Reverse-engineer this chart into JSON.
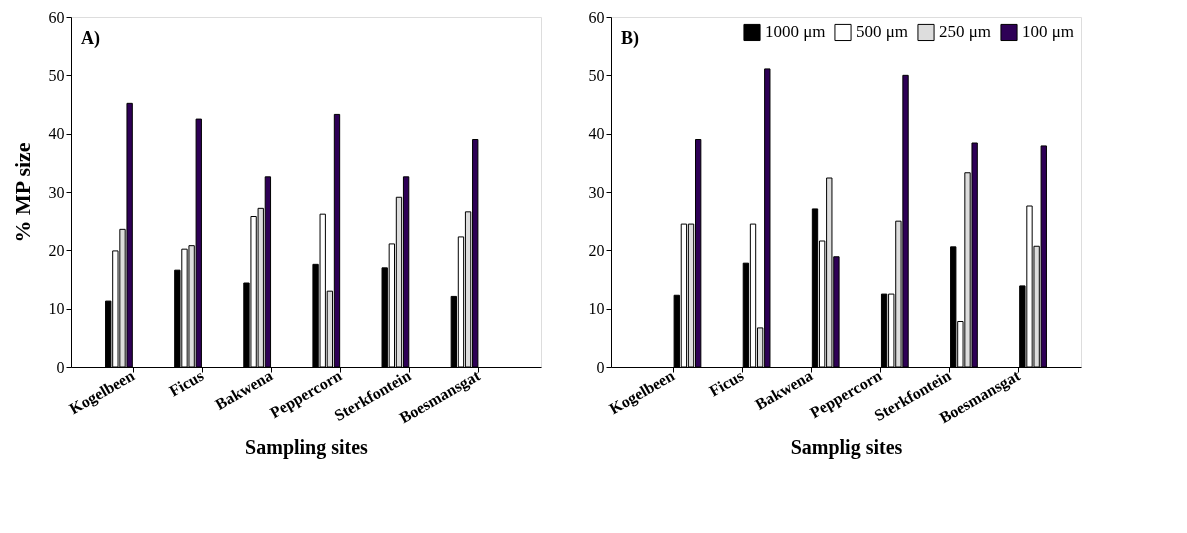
{
  "chart_data": [
    {
      "type": "bar",
      "categories": [
        "Kogelbeen",
        "Ficus",
        "Bakwena",
        "Peppercorn",
        "Sterkfontein",
        "Boesmansgat"
      ],
      "xlabel": "Sampling sites",
      "ylabel": "% MP size",
      "annotations": [
        "A)"
      ],
      "ylim": [
        0,
        60
      ],
      "yticks": [
        0,
        10,
        20,
        30,
        40,
        50,
        60
      ],
      "grid": false,
      "legend": false,
      "series": [
        {
          "color": "#000000",
          "values": [
            11.3,
            16.6,
            14.4,
            17.6,
            17.0,
            12.1
          ]
        },
        {
          "color": "#ffffff",
          "values": [
            19.9,
            20.2,
            25.8,
            26.2,
            21.1,
            22.3
          ]
        },
        {
          "color": "#dddddd",
          "values": [
            23.6,
            20.8,
            27.2,
            13.0,
            29.1,
            26.6
          ]
        },
        {
          "color": "#2e0056",
          "values": [
            45.2,
            42.5,
            32.6,
            43.3,
            32.6,
            39.0
          ]
        }
      ]
    },
    {
      "type": "bar",
      "categories": [
        "Kogelbeen",
        "Ficus",
        "Bakwena",
        "Peppercorn",
        "Sterkfontein",
        "Boesmansgat"
      ],
      "xlabel": "Samplig sites",
      "annotations": [
        "B)"
      ],
      "ylim": [
        0,
        60
      ],
      "yticks": [
        0,
        10,
        20,
        30,
        40,
        50,
        60
      ],
      "grid": false,
      "legend": "top right",
      "series": [
        {
          "name": "1000 μm",
          "color": "#000000",
          "values": [
            12.3,
            17.8,
            27.1,
            12.5,
            20.6,
            13.9
          ]
        },
        {
          "name": "500 μm",
          "color": "#ffffff",
          "values": [
            24.5,
            24.5,
            21.6,
            12.5,
            7.8,
            27.6
          ]
        },
        {
          "name": "250 μm",
          "color": "#dddddd",
          "values": [
            24.5,
            6.7,
            32.4,
            25.0,
            33.3,
            20.7
          ]
        },
        {
          "name": "100 μm",
          "color": "#2e0056",
          "values": [
            39.0,
            51.1,
            18.9,
            50.0,
            38.4,
            37.9
          ]
        }
      ]
    }
  ]
}
